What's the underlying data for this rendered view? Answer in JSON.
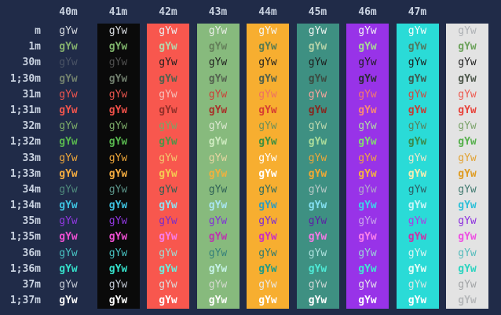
{
  "terminal": {
    "background": "#202b48",
    "label_color": "#c9d2e0",
    "cell_text": "gYw",
    "columns": [
      {
        "header": "",
        "bg": null
      },
      {
        "header": "40m",
        "bg": "#0a0a0a"
      },
      {
        "header": "41m",
        "bg": "#f8574e"
      },
      {
        "header": "42m",
        "bg": "#87ba7d"
      },
      {
        "header": "43m",
        "bg": "#f7ae30"
      },
      {
        "header": "44m",
        "bg": "#3e9082"
      },
      {
        "header": "45m",
        "bg": "#9833e8"
      },
      {
        "header": "46m",
        "bg": "#2adbd7"
      },
      {
        "header": "47m",
        "bg": "#e3e3e3"
      }
    ],
    "rows": [
      {
        "label": "m",
        "bold": false,
        "colors": [
          "#d9dde3",
          "#dadde2",
          "#eceef0",
          "#e9ede7",
          "#f5f6f3",
          "#eff3f1",
          "#f3f2f5",
          "#f5fdfb",
          "#aeb1b5"
        ]
      },
      {
        "label": "1m",
        "bold": true,
        "colors": [
          "#84b06d",
          "#7fb46b",
          "#b7d5aa",
          "#64805a",
          "#5b7b50",
          "#b3d1a7",
          "#a7d897",
          "#507a60",
          "#6da25c"
        ]
      },
      {
        "label": "30m",
        "bold": false,
        "colors": [
          "#4a5365",
          "#515151",
          "#1e1e1e",
          "#1e1e1e",
          "#1f1f1f",
          "#1c1c1c",
          "#1e1e1e",
          "#1c1c1c",
          "#1e1e1e"
        ]
      },
      {
        "label": "1;30m",
        "bold": true,
        "colors": [
          "#71806d",
          "#6f7d6c",
          "#52604e",
          "#556350",
          "#50604c",
          "#3c4c42",
          "#2c2c34",
          "#3e5a50",
          "#4e584c"
        ]
      },
      {
        "label": "31m",
        "bold": false,
        "colors": [
          "#ee544e",
          "#e9544d",
          "#f4c2bc",
          "#ce4038",
          "#ee7064",
          "#f6a49c",
          "#f4796c",
          "#d04840",
          "#ee5a50"
        ]
      },
      {
        "label": "1;31m",
        "bold": true,
        "colors": [
          "#f1554d",
          "#ef5049",
          "#93302a",
          "#a83029",
          "#d63c32",
          "#86261f",
          "#f88a74",
          "#c63a34",
          "#e8423a"
        ]
      },
      {
        "label": "32m",
        "bold": false,
        "colors": [
          "#7cab68",
          "#7cab68",
          "#79a566",
          "#dde8d2",
          "#6d8f58",
          "#bcd8ae",
          "#b2dfa2",
          "#56825e",
          "#7da46c"
        ]
      },
      {
        "label": "1;32m",
        "bold": true,
        "colors": [
          "#58b64e",
          "#58b64e",
          "#4f9347",
          "#cdeabf",
          "#3f8f3f",
          "#abdc9b",
          "#84d973",
          "#3a8a4a",
          "#56b04c"
        ]
      },
      {
        "label": "33m",
        "bold": false,
        "colors": [
          "#efa73a",
          "#efa73a",
          "#f3cb70",
          "#e9d6a2",
          "#ffffff",
          "#f0a838",
          "#f2a93c",
          "#efe8cc",
          "#e2a232"
        ]
      },
      {
        "label": "1;33m",
        "bold": true,
        "colors": [
          "#f4ac40",
          "#f4ac40",
          "#f6ca52",
          "#f0b13e",
          "#ffffff",
          "#f2a934",
          "#f4b242",
          "#f6ecb2",
          "#df9c22"
        ]
      },
      {
        "label": "34m",
        "bold": false,
        "colors": [
          "#4f8a7c",
          "#5b9489",
          "#2f5c52",
          "#2e6156",
          "#2e6a5e",
          "#b6c8c6",
          "#b2a8cc",
          "#2e5c62",
          "#417a70"
        ]
      },
      {
        "label": "1;34m",
        "bold": true,
        "colors": [
          "#3ec2e0",
          "#3ec2e0",
          "#8fdff0",
          "#a9e5f2",
          "#2f9cc0",
          "#84e0f2",
          "#3fd2ea",
          "#c9f4f6",
          "#2fc0d8"
        ]
      },
      {
        "label": "35m",
        "bold": false,
        "colors": [
          "#9138e2",
          "#9138e2",
          "#7a2cc8",
          "#8030d8",
          "#7c2ad4",
          "#5c1ea6",
          "#c9a6ea",
          "#ac3ae6",
          "#8c2ede"
        ]
      },
      {
        "label": "1;35m",
        "bold": true,
        "colors": [
          "#ed4fd1",
          "#ed4fd1",
          "#f97cea",
          "#bc35ae",
          "#cc2fc0",
          "#f27ae4",
          "#fa80ea",
          "#cc30a6",
          "#ee52e2"
        ]
      },
      {
        "label": "36m",
        "bold": false,
        "colors": [
          "#48c2c2",
          "#48c2c2",
          "#9edcd4",
          "#35807a",
          "#2e7a70",
          "#aee2de",
          "#9cd6d8",
          "#dcf4f2",
          "#55bcbc"
        ]
      },
      {
        "label": "1;36m",
        "bold": true,
        "colors": [
          "#35dfc9",
          "#35dfc9",
          "#6ceedd",
          "#c5f2e6",
          "#1e9a86",
          "#4eead6",
          "#40e8d2",
          "#e2fcf6",
          "#2cd4c0"
        ]
      },
      {
        "label": "37m",
        "bold": false,
        "colors": [
          "#c4cad5",
          "#c4cad5",
          "#dadcdc",
          "#d4dad0",
          "#e8e8e4",
          "#ccd6d4",
          "#e4e2ea",
          "#d8e8e6",
          "#a2a4a6"
        ]
      },
      {
        "label": "1;37m",
        "bold": true,
        "colors": [
          "#fafafa",
          "#ffffff",
          "#ffffff",
          "#ffffff",
          "#ffffff",
          "#ffffff",
          "#ffffff",
          "#ffffff",
          "#b6b8ba"
        ]
      }
    ]
  }
}
